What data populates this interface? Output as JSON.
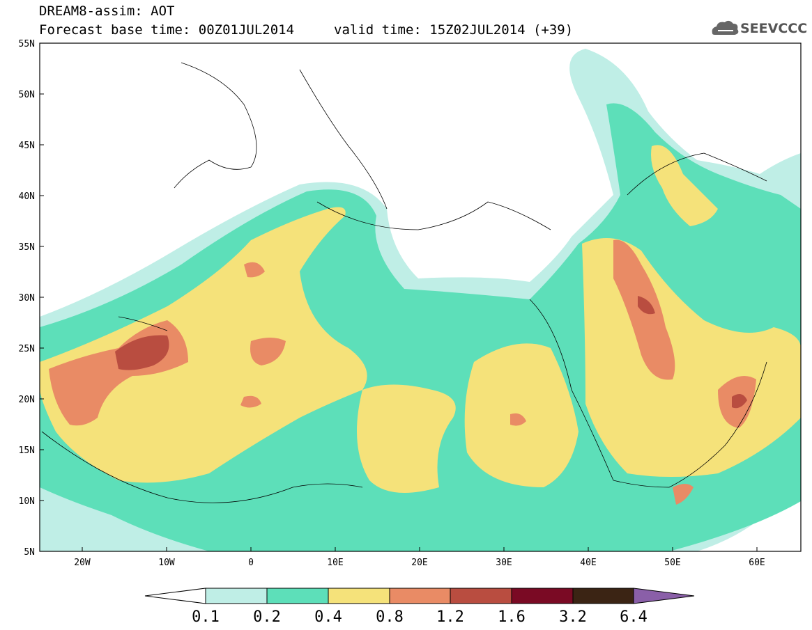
{
  "title": {
    "line1": "DREAM8-assim: AOT",
    "line2": "Forecast base time: 00Z01JUL2014",
    "valid": "valid time: 15Z02JUL2014 (+39)"
  },
  "logo": {
    "icon": "cloud-logo-icon",
    "text": "SEEVCCC"
  },
  "axes": {
    "lat_labels": [
      "55N",
      "50N",
      "45N",
      "40N",
      "35N",
      "30N",
      "25N",
      "20N",
      "15N",
      "10N",
      "5N"
    ],
    "lon_labels": [
      "20W",
      "10W",
      "0",
      "10E",
      "20E",
      "30E",
      "40E",
      "50E",
      "60E"
    ]
  },
  "colorbar": {
    "labels": [
      "0.1",
      "0.2",
      "0.4",
      "0.8",
      "1.2",
      "1.6",
      "3.2",
      "6.4"
    ],
    "colors": [
      "#ffffff",
      "#bfeee6",
      "#5ddfb9",
      "#f5e27a",
      "#e98b65",
      "#b94d40",
      "#7a0a24",
      "#3b2414",
      "#8a5fa8"
    ]
  },
  "field_colors": {
    "c01": "#bfeee6",
    "c02": "#5ddfb9",
    "c04": "#f5e27a",
    "c08": "#e98b65",
    "c12": "#b94d40",
    "c16": "#7a0a24"
  }
}
